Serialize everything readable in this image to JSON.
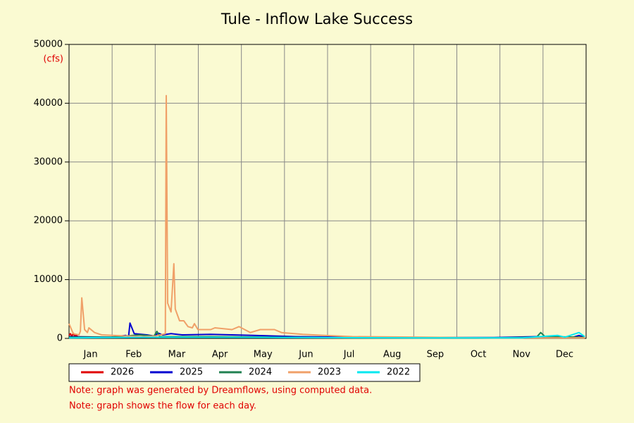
{
  "chart_data": {
    "type": "line",
    "title": "Tule - Inflow Lake Success",
    "y_unit": "(cfs)",
    "categories": [
      "Jan",
      "Feb",
      "Mar",
      "Apr",
      "May",
      "Jun",
      "Jul",
      "Aug",
      "Sep",
      "Oct",
      "Nov",
      "Dec"
    ],
    "xlim": [
      0,
      365
    ],
    "ylim": [
      0,
      50000
    ],
    "yticks": [
      0,
      10000,
      20000,
      30000,
      40000,
      50000
    ],
    "grid": true,
    "series": [
      {
        "name": "2026",
        "color": "#e00000",
        "x": [
          0,
          1,
          2,
          3,
          4,
          5,
          6
        ],
        "values": [
          500,
          800,
          300,
          900,
          400,
          600,
          300
        ]
      },
      {
        "name": "2025",
        "color": "#0000d0",
        "x": [
          0,
          30,
          40,
          42,
          43,
          46,
          55,
          60,
          63,
          66,
          72,
          80,
          100,
          130,
          160,
          200,
          250,
          300,
          330,
          355,
          360,
          364
        ],
        "values": [
          300,
          200,
          500,
          300,
          2600,
          800,
          600,
          400,
          900,
          600,
          800,
          600,
          700,
          500,
          300,
          200,
          150,
          150,
          300,
          150,
          500,
          200
        ]
      },
      {
        "name": "2024",
        "color": "#208050",
        "x": [
          0,
          30,
          50,
          60,
          62,
          64,
          100,
          200,
          300,
          330,
          333,
          336,
          364
        ],
        "values": [
          200,
          200,
          600,
          400,
          1200,
          300,
          300,
          100,
          100,
          200,
          1000,
          300,
          200
        ]
      },
      {
        "name": "2023",
        "color": "#f0a068",
        "x": [
          0,
          3,
          7,
          8,
          9,
          11,
          13,
          14,
          18,
          23,
          31,
          51,
          61,
          68,
          68.6,
          69.6,
          72,
          74,
          75,
          78,
          81,
          84,
          87,
          88.5,
          91,
          100,
          103,
          115,
          120,
          128,
          135,
          145,
          150,
          165,
          180,
          200,
          250,
          300,
          364
        ],
        "values": [
          2500,
          800,
          600,
          1200,
          6900,
          1500,
          1000,
          1800,
          1000,
          600,
          500,
          300,
          400,
          800,
          41300,
          6000,
          4500,
          12700,
          5000,
          3000,
          3000,
          2000,
          1800,
          2500,
          1500,
          1500,
          1800,
          1500,
          2000,
          1000,
          1500,
          1500,
          1000,
          700,
          500,
          300,
          200,
          100,
          100
        ]
      },
      {
        "name": "2022",
        "color": "#00e8f0",
        "x": [
          0,
          70,
          150,
          250,
          320,
          345,
          350,
          360,
          364
        ],
        "values": [
          100,
          200,
          150,
          100,
          100,
          500,
          200,
          1000,
          300
        ]
      }
    ],
    "notes": [
      "Note: graph was generated by Dreamflows, using computed data.",
      "Note: graph shows the  flow for each day."
    ]
  }
}
